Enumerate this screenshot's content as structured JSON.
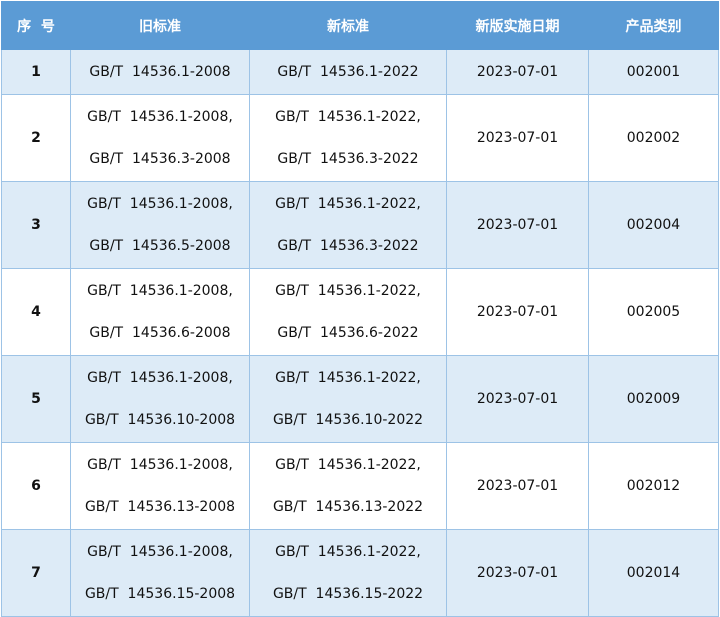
{
  "headers": [
    "序  号",
    "旧标准",
    "新标准",
    "新版实施日期",
    "产品类别"
  ],
  "rows": [
    {
      "no": "1",
      "old": [
        "GB/T  14536.1-2008"
      ],
      "new": [
        "GB/T  14536.1-2022"
      ],
      "date": "2023-07-01",
      "category": "002001"
    },
    {
      "no": "2",
      "old": [
        "GB/T  14536.1-2008,",
        "GB/T  14536.3-2008"
      ],
      "new": [
        "GB/T  14536.1-2022,",
        "GB/T  14536.3-2022"
      ],
      "date": "2023-07-01",
      "category": "002002"
    },
    {
      "no": "3",
      "old": [
        "GB/T  14536.1-2008,",
        "GB/T  14536.5-2008"
      ],
      "new": [
        "GB/T  14536.1-2022,",
        "GB/T  14536.3-2022"
      ],
      "date": "2023-07-01",
      "category": "002004"
    },
    {
      "no": "4",
      "old": [
        "GB/T  14536.1-2008,",
        "GB/T  14536.6-2008"
      ],
      "new": [
        "GB/T  14536.1-2022,",
        "GB/T  14536.6-2022"
      ],
      "date": "2023-07-01",
      "category": "002005"
    },
    {
      "no": "5",
      "old": [
        "GB/T  14536.1-2008,",
        "GB/T  14536.10-2008"
      ],
      "new": [
        "GB/T  14536.1-2022,",
        "GB/T  14536.10-2022"
      ],
      "date": "2023-07-01",
      "category": "002009"
    },
    {
      "no": "6",
      "old": [
        "GB/T  14536.1-2008,",
        "GB/T  14536.13-2008"
      ],
      "new": [
        "GB/T  14536.1-2022,",
        "GB/T  14536.13-2022"
      ],
      "date": "2023-07-01",
      "category": "002012"
    },
    {
      "no": "7",
      "old": [
        "GB/T  14536.1-2008,",
        "GB/T  14536.15-2008"
      ],
      "new": [
        "GB/T  14536.1-2022,",
        "GB/T  14536.15-2022"
      ],
      "date": "2023-07-01",
      "category": "002014"
    }
  ],
  "colors": {
    "header_bg": "#5b9bd5",
    "stripe_bg": "#ddebf7",
    "border": "#9dc3e6"
  }
}
